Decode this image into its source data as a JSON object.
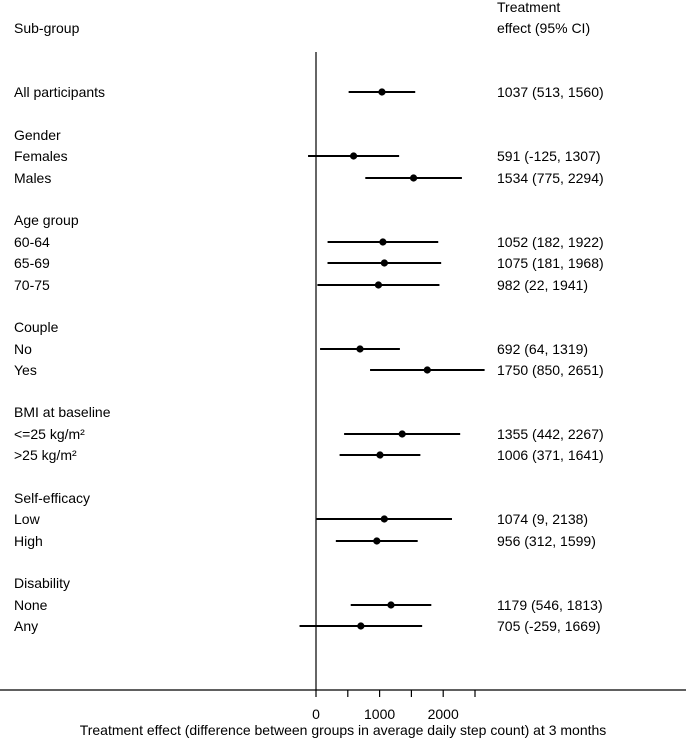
{
  "chart_data": {
    "type": "forest",
    "header_left": "Sub-group",
    "header_right_line1": "Treatment",
    "header_right_line2": "effect (95% CI)",
    "xlabel": "Treatment effect (difference between groups in average daily step count) at 3 months",
    "xlim": [
      -1000,
      2500
    ],
    "xticks": [
      0,
      500,
      1000,
      1500,
      2000,
      2500
    ],
    "xtick_labels": [
      "0",
      "",
      "1000",
      "",
      "2000",
      ""
    ],
    "reference_line": 0,
    "rows": [
      {
        "label": "All participants",
        "kind": "data",
        "estimate": 1037,
        "lower": 513,
        "upper": 1560,
        "ci_text": "1037 (513, 1560)"
      },
      {
        "label": "Gender",
        "kind": "header"
      },
      {
        "label": "Females",
        "kind": "data",
        "estimate": 591,
        "lower": -125,
        "upper": 1307,
        "ci_text": "591 (-125, 1307)"
      },
      {
        "label": "Males",
        "kind": "data",
        "estimate": 1534,
        "lower": 775,
        "upper": 2294,
        "ci_text": "1534 (775, 2294)"
      },
      {
        "label": "Age group",
        "kind": "header"
      },
      {
        "label": "60-64",
        "kind": "data",
        "estimate": 1052,
        "lower": 182,
        "upper": 1922,
        "ci_text": "1052 (182, 1922)"
      },
      {
        "label": "65-69",
        "kind": "data",
        "estimate": 1075,
        "lower": 181,
        "upper": 1968,
        "ci_text": "1075 (181, 1968)"
      },
      {
        "label": "70-75",
        "kind": "data",
        "estimate": 982,
        "lower": 22,
        "upper": 1941,
        "ci_text": "982 (22, 1941)"
      },
      {
        "label": "Couple",
        "kind": "header"
      },
      {
        "label": "No",
        "kind": "data",
        "estimate": 692,
        "lower": 64,
        "upper": 1319,
        "ci_text": "692 (64, 1319)"
      },
      {
        "label": "Yes",
        "kind": "data",
        "estimate": 1750,
        "lower": 850,
        "upper": 2651,
        "ci_text": "1750 (850, 2651)"
      },
      {
        "label": "BMI at baseline",
        "kind": "header"
      },
      {
        "label": "<=25 kg/m²",
        "kind": "data",
        "estimate": 1355,
        "lower": 442,
        "upper": 2267,
        "ci_text": "1355 (442, 2267)"
      },
      {
        "label": ">25 kg/m²",
        "kind": "data",
        "estimate": 1006,
        "lower": 371,
        "upper": 1641,
        "ci_text": "1006 (371, 1641)"
      },
      {
        "label": "Self-efficacy",
        "kind": "header"
      },
      {
        "label": "Low",
        "kind": "data",
        "estimate": 1074,
        "lower": 9,
        "upper": 2138,
        "ci_text": "1074 (9, 2138)"
      },
      {
        "label": "High",
        "kind": "data",
        "estimate": 956,
        "lower": 312,
        "upper": 1599,
        "ci_text": "956 (312, 1599)"
      },
      {
        "label": "Disability",
        "kind": "header"
      },
      {
        "label": "None",
        "kind": "data",
        "estimate": 1179,
        "lower": 546,
        "upper": 1813,
        "ci_text": "1179 (546, 1813)"
      },
      {
        "label": "Any",
        "kind": "data",
        "estimate": 705,
        "lower": -259,
        "upper": 1669,
        "ci_text": "705 (-259, 1669)"
      }
    ]
  }
}
